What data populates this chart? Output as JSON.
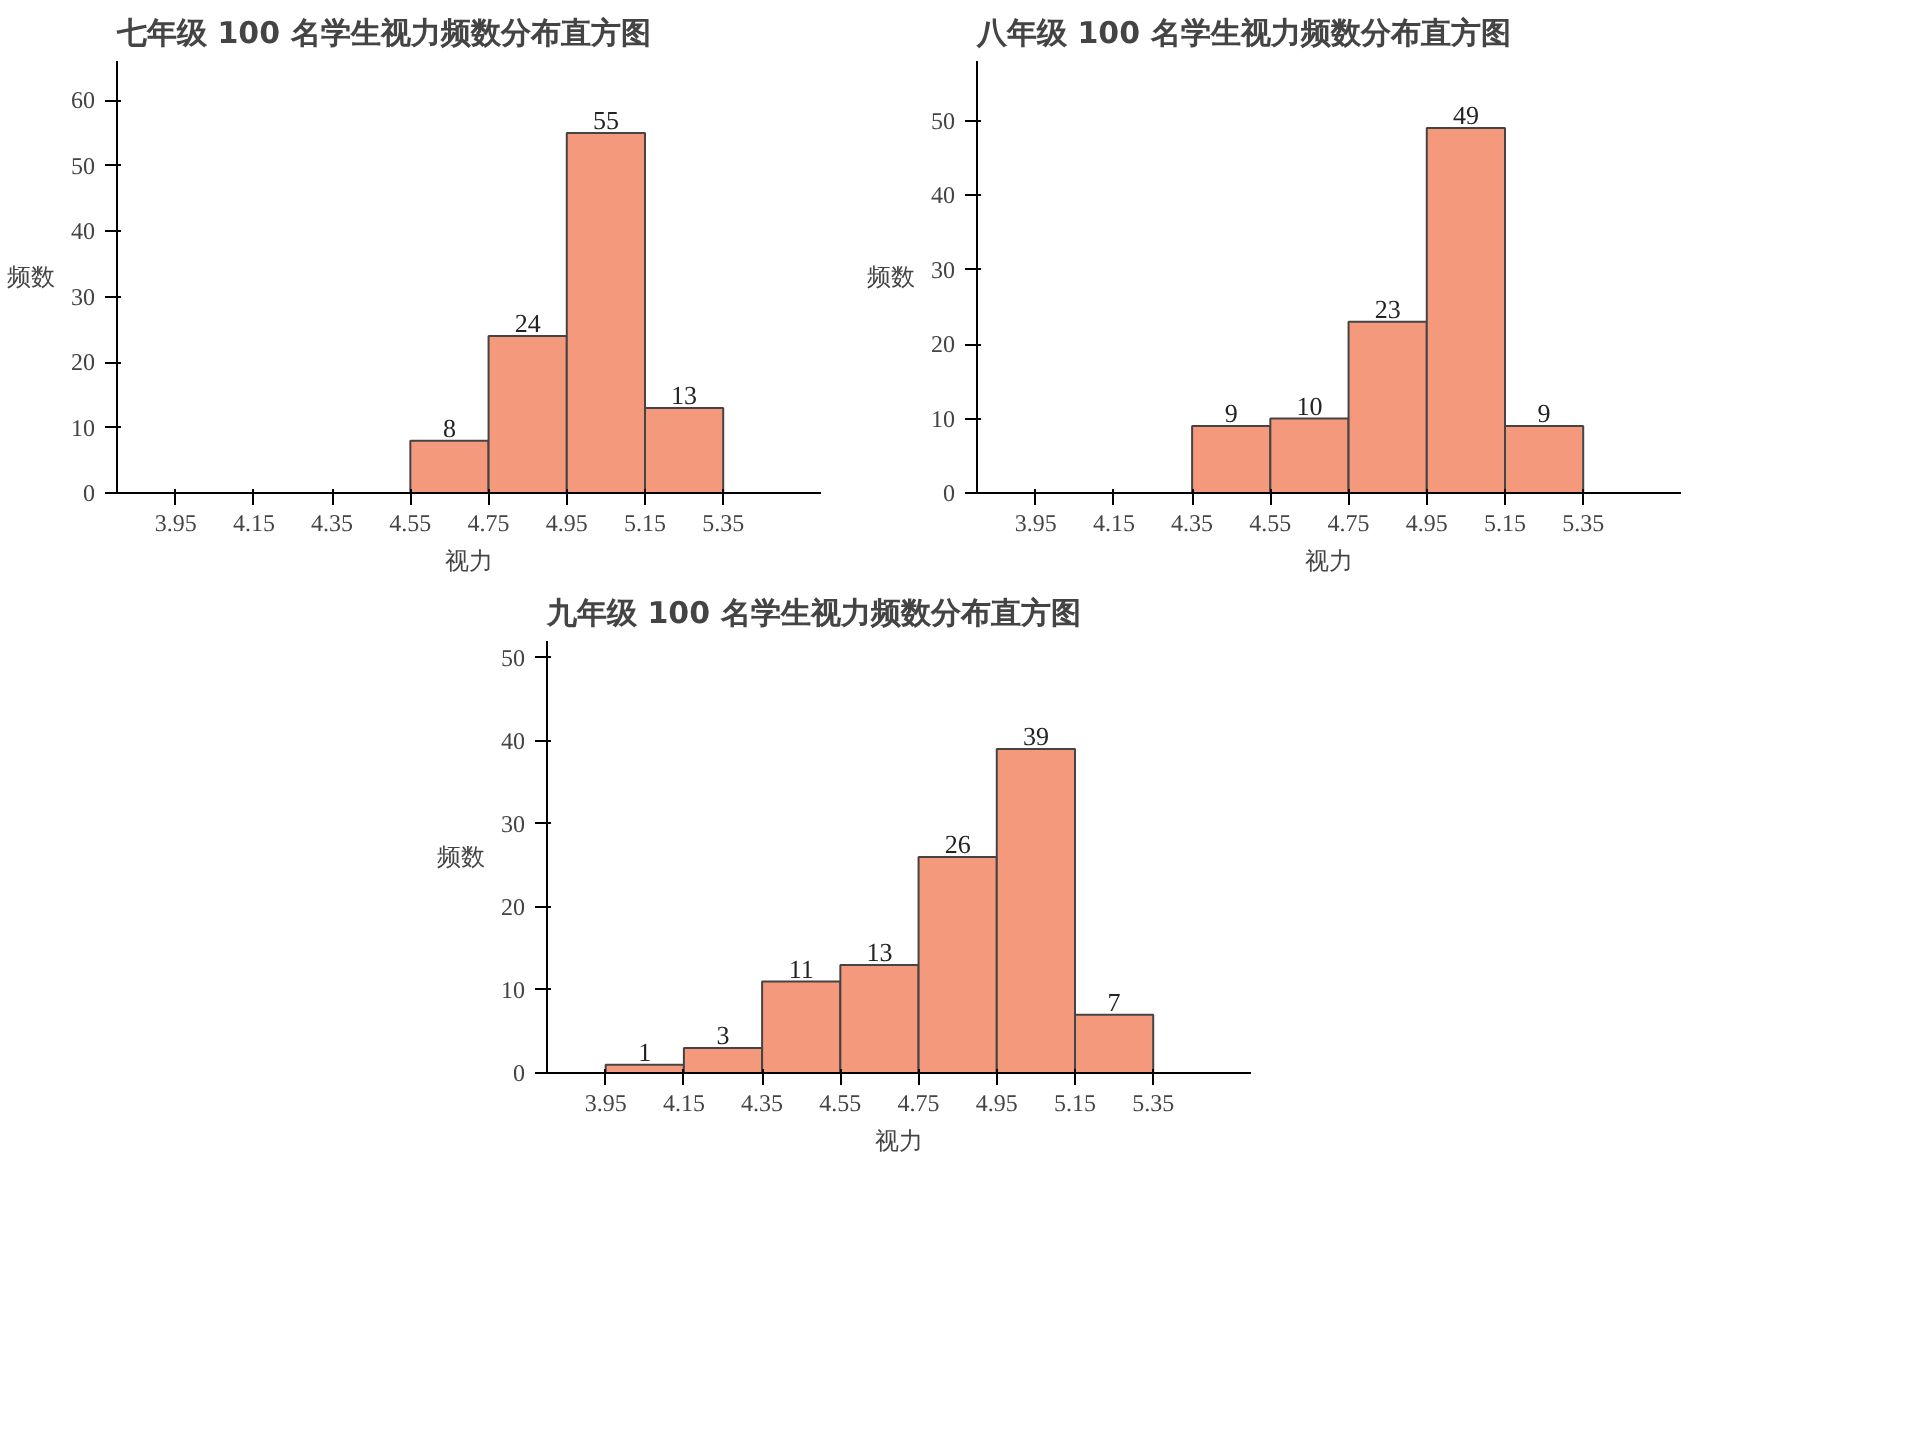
{
  "chart_data": [
    {
      "type": "histogram",
      "title": "七年级 100 名学生视力频数分布直方图",
      "xlabel": "视力",
      "ylabel": "频数",
      "bins": [
        3.95,
        4.15,
        4.35,
        4.55,
        4.75,
        4.95,
        5.15,
        5.35
      ],
      "values": [
        0,
        0,
        0,
        8,
        24,
        55,
        13
      ],
      "value_labels": [
        null,
        null,
        null,
        "8",
        "24",
        "55",
        "13"
      ],
      "color": "#f4997c",
      "xlim": [
        3.8,
        5.6
      ],
      "ylim": [
        0,
        66
      ],
      "xticks": [
        3.95,
        4.15,
        4.35,
        4.55,
        4.75,
        4.95,
        5.15,
        5.35
      ],
      "yticks": [
        0,
        10,
        20,
        30,
        40,
        50,
        60
      ]
    },
    {
      "type": "histogram",
      "title": "八年级 100 名学生视力频数分布直方图",
      "xlabel": "视力",
      "ylabel": "频数",
      "bins": [
        3.95,
        4.15,
        4.35,
        4.55,
        4.75,
        4.95,
        5.15,
        5.35
      ],
      "values": [
        0,
        0,
        9,
        10,
        23,
        49,
        9
      ],
      "value_labels": [
        null,
        null,
        "9",
        "10",
        "23",
        "49",
        "9"
      ],
      "color": "#f4997c",
      "xlim": [
        3.8,
        5.6
      ],
      "ylim": [
        0,
        58
      ],
      "xticks": [
        3.95,
        4.15,
        4.35,
        4.55,
        4.75,
        4.95,
        5.15,
        5.35
      ],
      "yticks": [
        0,
        10,
        20,
        30,
        40,
        50
      ]
    },
    {
      "type": "histogram",
      "title": "九年级 100 名学生视力频数分布直方图",
      "xlabel": "视力",
      "ylabel": "频数",
      "bins": [
        3.95,
        4.15,
        4.35,
        4.55,
        4.75,
        4.95,
        5.15,
        5.35
      ],
      "values": [
        1,
        3,
        11,
        13,
        26,
        39,
        7
      ],
      "data_labels": true,
      "color": "#f4997c",
      "xlim": [
        3.8,
        5.6
      ],
      "ylim": [
        0,
        52
      ],
      "xticks": [
        3.95,
        4.15,
        4.35,
        4.55,
        4.75,
        4.95,
        5.15,
        5.35
      ],
      "yticks": [
        0,
        10,
        20,
        30,
        40,
        50
      ]
    }
  ]
}
